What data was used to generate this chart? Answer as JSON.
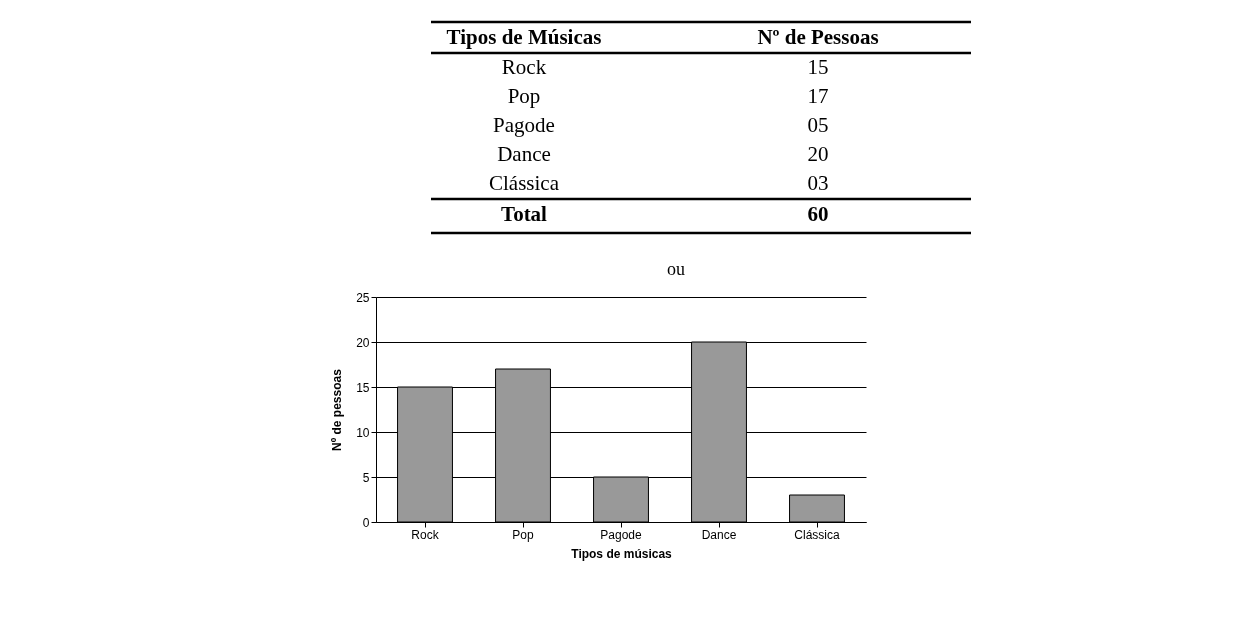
{
  "chart_data": {
    "type": "bar",
    "categories": [
      "Rock",
      "Pop",
      "Pagode",
      "Dance",
      "Clássica"
    ],
    "values": [
      15,
      17,
      5,
      20,
      3
    ],
    "color": "#999999",
    "xlabel": "Tipos de músicas",
    "ylabel": "Nº de pessoas",
    "ylim": [
      0,
      25
    ],
    "yticks": [
      0,
      5,
      10,
      15,
      20,
      25
    ],
    "grid": "y",
    "annotations": [
      "Tipos de Músicas",
      "Nº de Pessoas",
      "15",
      "17",
      "05",
      "20",
      "03",
      "Total",
      "60",
      "ou"
    ]
  }
}
